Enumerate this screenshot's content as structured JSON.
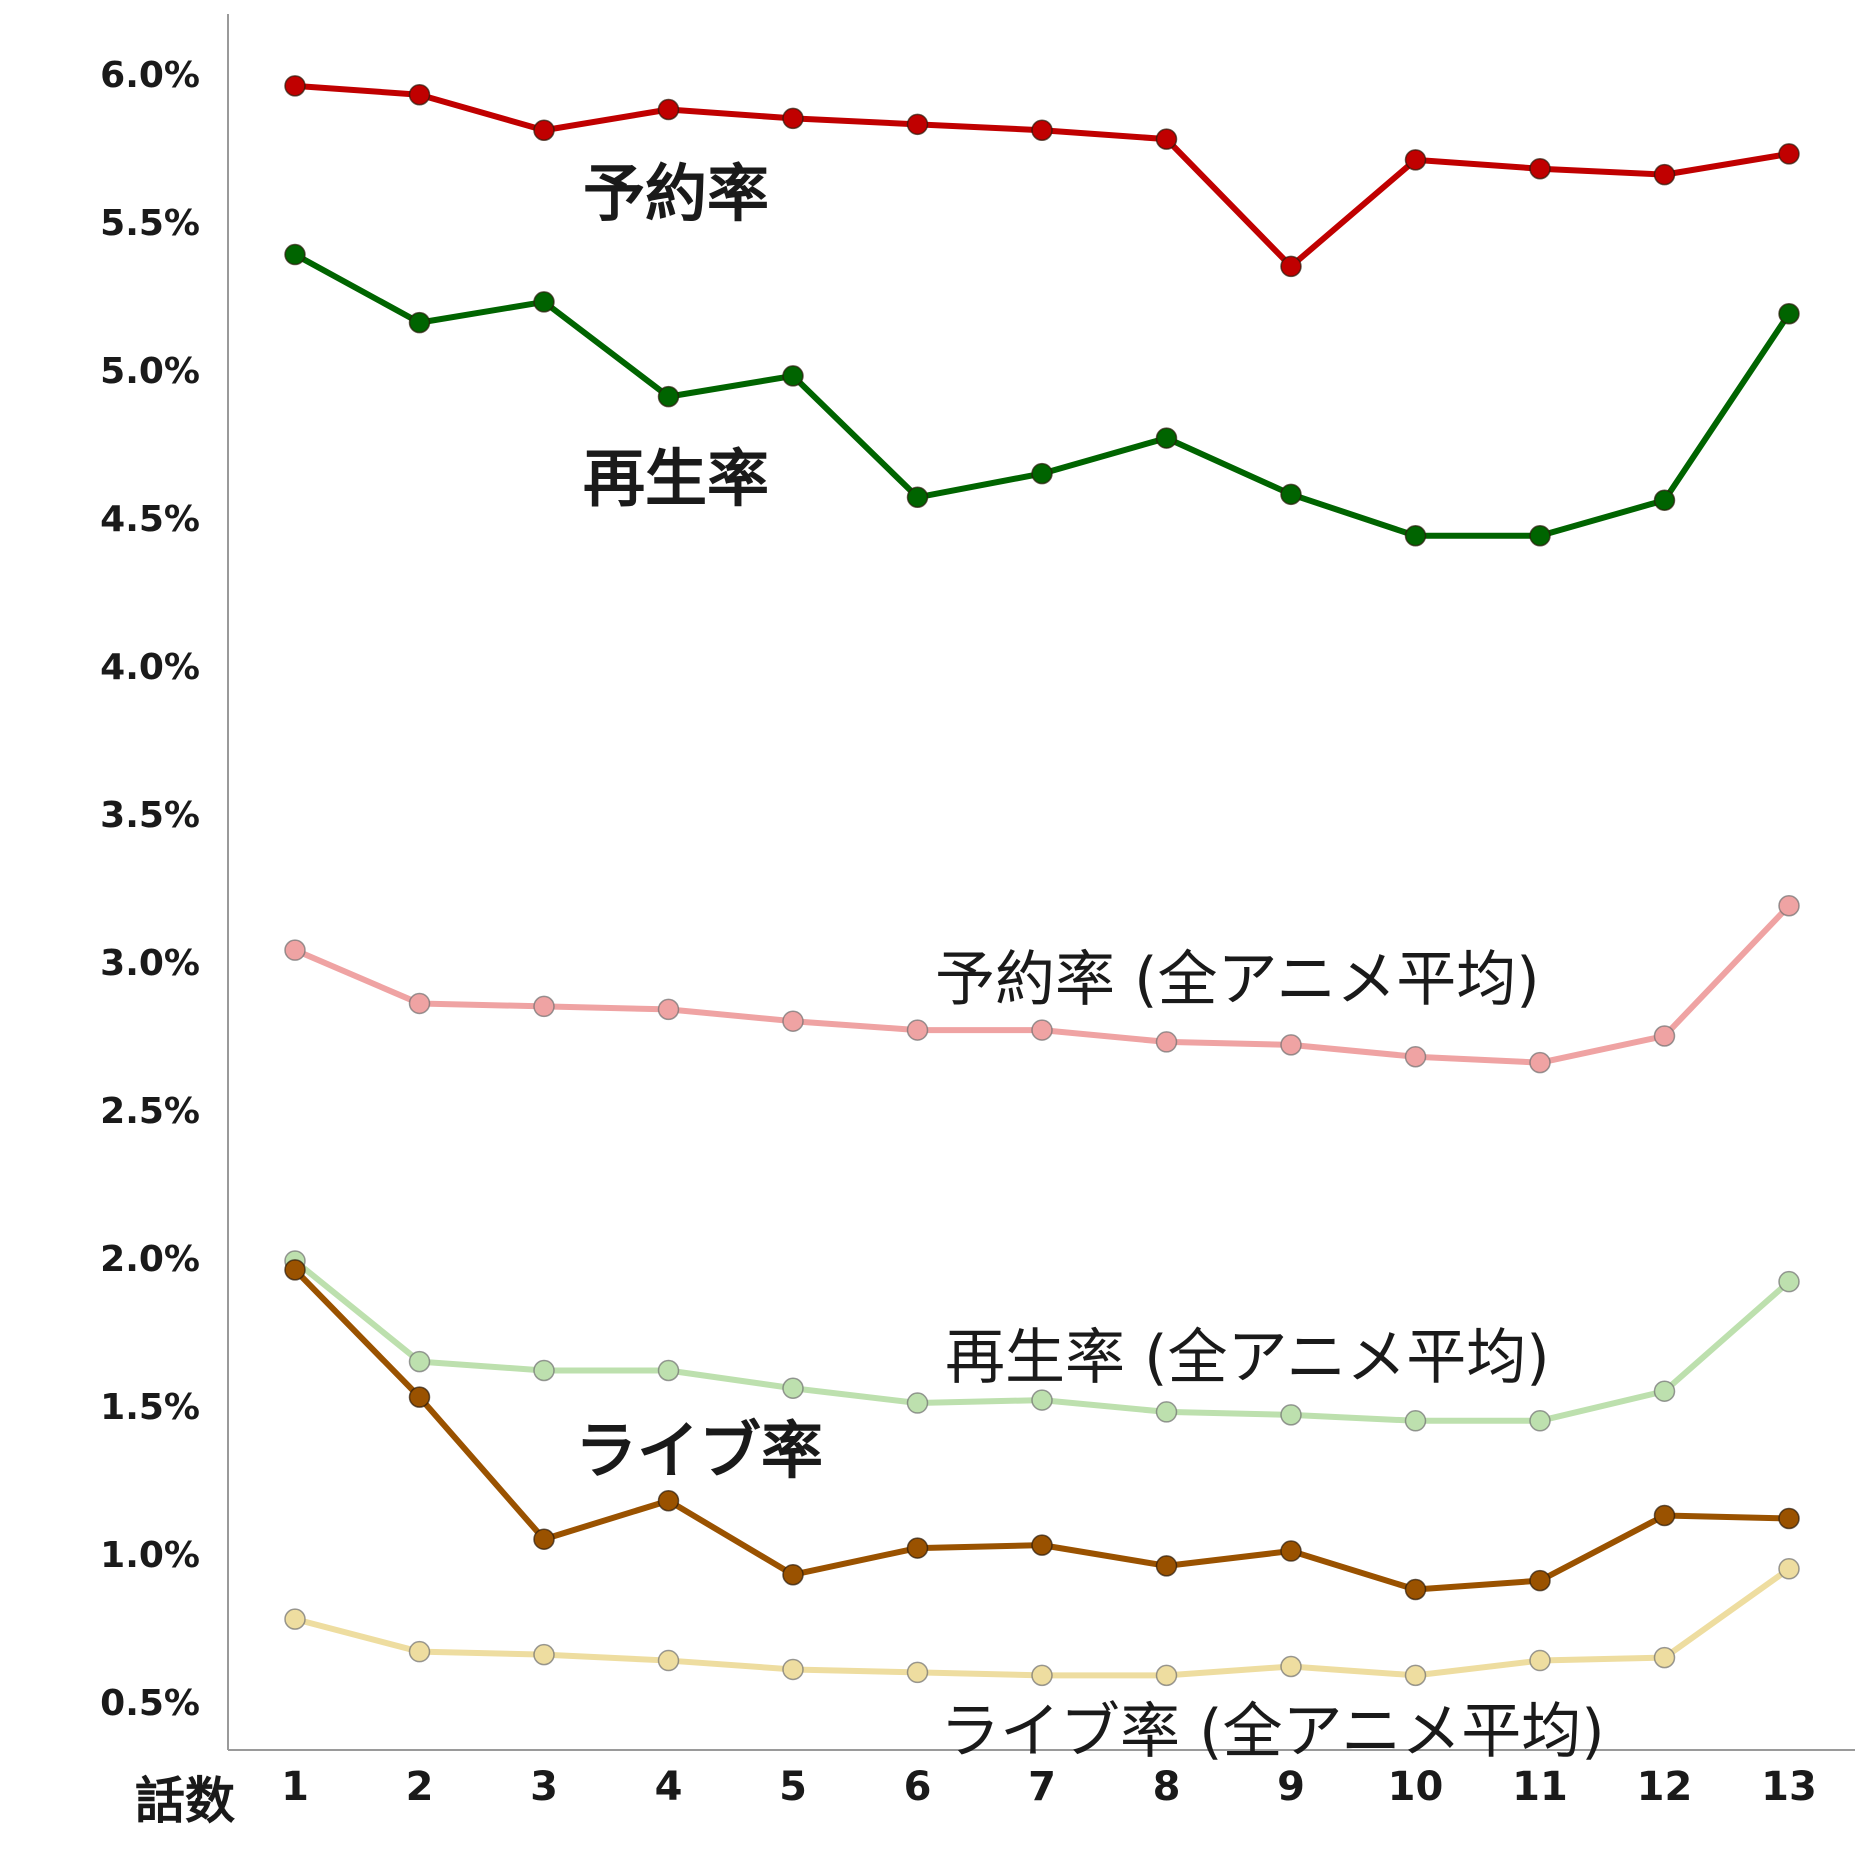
{
  "chart_data": {
    "type": "line",
    "xlabel": "話数",
    "ylabel": "",
    "ylim": [
      0.3,
      6.2
    ],
    "y_ticks": [
      "0.5%",
      "1.0%",
      "1.5%",
      "2.0%",
      "2.5%",
      "3.0%",
      "3.5%",
      "4.0%",
      "4.5%",
      "5.0%",
      "5.5%",
      "6.0%"
    ],
    "x": [
      1,
      2,
      3,
      4,
      5,
      6,
      7,
      8,
      9,
      10,
      11,
      12,
      13
    ],
    "grid": false,
    "series": [
      {
        "name": "予約率",
        "color": "#c00000",
        "style": "bold",
        "values": [
          5.96,
          5.93,
          5.81,
          5.88,
          5.85,
          5.83,
          5.81,
          5.78,
          5.35,
          5.71,
          5.68,
          5.66,
          5.73
        ]
      },
      {
        "name": "再生率",
        "color": "#006400",
        "style": "bold",
        "values": [
          5.39,
          5.16,
          5.23,
          4.91,
          4.98,
          4.57,
          4.65,
          4.77,
          4.58,
          4.44,
          4.44,
          4.56,
          5.19
        ]
      },
      {
        "name": "予約率 (全アニメ平均)",
        "color": "#efa3a3",
        "style": "plain",
        "values": [
          3.04,
          2.86,
          2.85,
          2.84,
          2.8,
          2.77,
          2.77,
          2.73,
          2.72,
          2.68,
          2.66,
          2.75,
          3.19
        ]
      },
      {
        "name": "再生率 (全アニメ平均)",
        "color": "#bde0ae",
        "style": "plain",
        "values": [
          1.99,
          1.65,
          1.62,
          1.62,
          1.56,
          1.51,
          1.52,
          1.48,
          1.47,
          1.45,
          1.45,
          1.55,
          1.92
        ]
      },
      {
        "name": "ライブ率",
        "color": "#9a5200",
        "style": "bold",
        "values": [
          1.96,
          1.53,
          1.05,
          1.18,
          0.93,
          1.02,
          1.03,
          0.96,
          1.01,
          0.88,
          0.91,
          1.13,
          1.12
        ]
      },
      {
        "name": "ライブ率 (全アニメ平均)",
        "color": "#eedda0",
        "style": "plain",
        "values": [
          0.78,
          0.67,
          0.66,
          0.64,
          0.61,
          0.6,
          0.59,
          0.59,
          0.62,
          0.59,
          0.64,
          0.65,
          0.95
        ]
      }
    ]
  }
}
